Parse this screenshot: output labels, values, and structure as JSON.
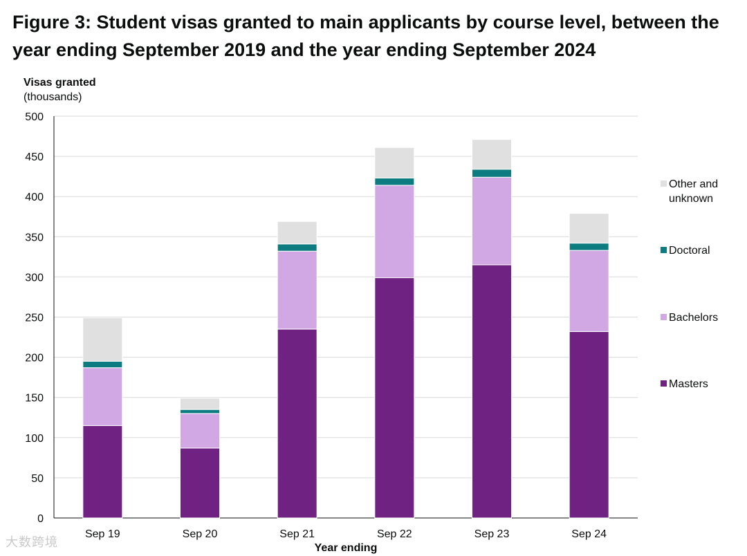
{
  "title": "Figure 3: Student visas granted to main applicants by course level, between the year ending September 2019 and the year ending September 2024",
  "watermark": "大数跨境",
  "chart_data": {
    "type": "bar",
    "stacked": true,
    "title": "Figure 3: Student visas granted to main applicants by course level, between the year ending September 2019 and the year ending September 2024",
    "ylabel": "Visas granted",
    "ylabel_sub": "(thousands)",
    "xlabel": "Year ending",
    "categories": [
      "Sep 19",
      "Sep 20",
      "Sep 21",
      "Sep 22",
      "Sep 23",
      "Sep 24"
    ],
    "ylim": [
      0,
      500
    ],
    "yticks": [
      0,
      50,
      100,
      150,
      200,
      250,
      300,
      350,
      400,
      450,
      500
    ],
    "grid": true,
    "legend_position": "right",
    "series": [
      {
        "name": "Masters",
        "color": "#6f2282",
        "values": [
          115,
          87,
          235,
          299,
          315,
          232
        ]
      },
      {
        "name": "Bachelors",
        "color": "#d2a8e4",
        "values": [
          72,
          43,
          97,
          115,
          109,
          101
        ]
      },
      {
        "name": "Doctoral",
        "color": "#0c7c80",
        "values": [
          8,
          5,
          9,
          9,
          10,
          9
        ]
      },
      {
        "name": "Other and unknown",
        "color": "#e0e0e0",
        "values": [
          54,
          14,
          28,
          38,
          37,
          37
        ]
      }
    ],
    "legend_order": [
      {
        "label_lines": [
          "Other and",
          "unknown"
        ],
        "series": 3
      },
      {
        "label_lines": [
          "Doctoral"
        ],
        "series": 2
      },
      {
        "label_lines": [
          "Bachelors"
        ],
        "series": 1
      },
      {
        "label_lines": [
          "Masters"
        ],
        "series": 0
      }
    ]
  }
}
